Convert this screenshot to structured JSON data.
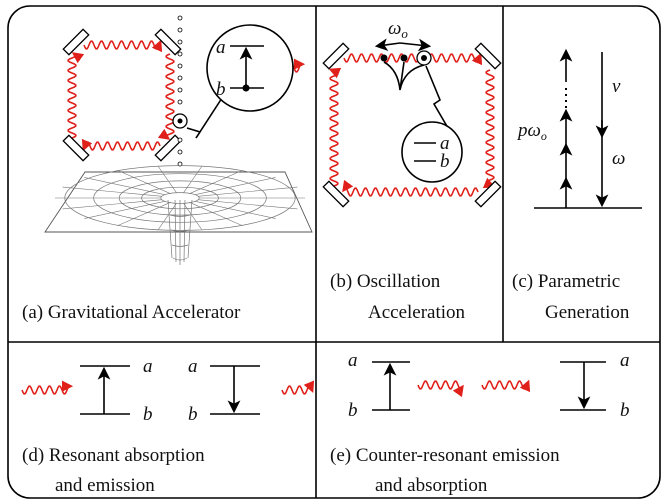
{
  "panel_a": {
    "caption": "(a) Gravitational Accelerator",
    "level_a": "a",
    "level_b": "b"
  },
  "panel_b": {
    "omega": "ω",
    "omega_sub": "o",
    "caption_line1": "(b) Oscillation",
    "caption_line2": "Acceleration",
    "level_a": "a",
    "level_b": "b"
  },
  "panel_c": {
    "p_omega": "pω",
    "p_omega_sub": "o",
    "nu": "ν",
    "omega": "ω",
    "caption_line1": "(c) Parametric",
    "caption_line2": "Generation"
  },
  "panel_d": {
    "left_a": "a",
    "left_b": "b",
    "right_a": "a",
    "right_b": "b",
    "caption_line1": "(d) Resonant absorption",
    "caption_line2": "and emission"
  },
  "panel_e": {
    "left_a": "a",
    "left_b": "b",
    "right_a": "a",
    "right_b": "b",
    "caption_line1": "(e) Counter-resonant emission",
    "caption_line2": "and absorption"
  }
}
